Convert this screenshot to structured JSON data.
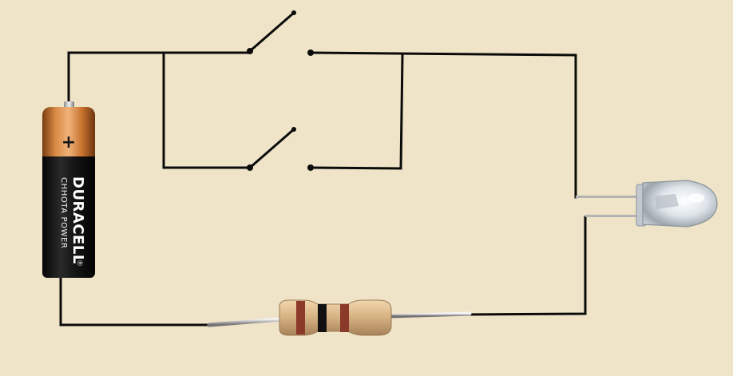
{
  "battery": {
    "brand": "DURACELL",
    "tagline": "CHHOTA POWER",
    "registered_mark": "®",
    "polarity": "+"
  },
  "colors": {
    "background": "#efe4c8",
    "wire": "#0b0b0b",
    "battery_copper": "#c8732e",
    "battery_black": "#1a1a1a",
    "resistor_body": "#d9b585",
    "resistor_band_1": "#8b3a2a",
    "resistor_band_2": "#111111",
    "resistor_band_3": "#8b3a2a",
    "led_lens": "#d8dde2"
  },
  "components": {
    "switch_top": {
      "state": "open"
    },
    "switch_bottom": {
      "state": "open"
    },
    "led": {
      "lead_count": 2
    },
    "resistor": {
      "band_count": 3
    }
  }
}
